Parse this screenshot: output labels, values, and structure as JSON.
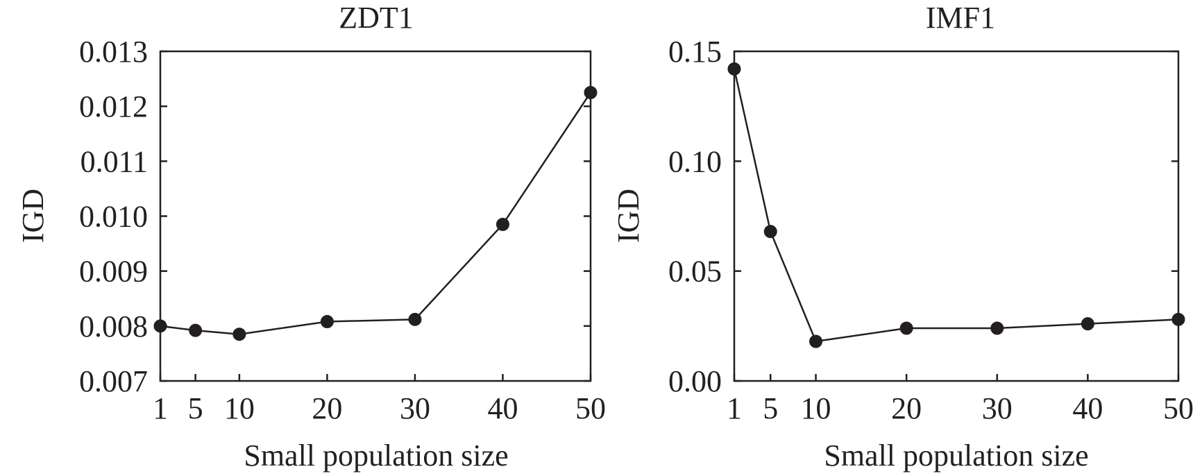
{
  "chart_data": [
    {
      "type": "line",
      "title": "ZDT1",
      "xlabel": "Small population size",
      "ylabel": "IGD",
      "x": [
        1,
        5,
        10,
        20,
        30,
        40,
        50
      ],
      "x_tick_labels": [
        "1",
        "5",
        "10",
        "20",
        "30",
        "40",
        "50"
      ],
      "y_tick_values": [
        0.007,
        0.008,
        0.009,
        0.01,
        0.011,
        0.012,
        0.013
      ],
      "y_tick_labels": [
        "0.007",
        "0.008",
        "0.009",
        "0.010",
        "0.011",
        "0.012",
        "0.013"
      ],
      "xlim": [
        1,
        50
      ],
      "ylim": [
        0.007,
        0.013
      ],
      "grid": false,
      "series": [
        {
          "name": "ZDT1",
          "values": [
            0.008,
            0.00792,
            0.00785,
            0.00808,
            0.00812,
            0.00985,
            0.01225
          ],
          "color": "#231f20",
          "marker": "circle"
        }
      ]
    },
    {
      "type": "line",
      "title": "IMF1",
      "xlabel": "Small population size",
      "ylabel": "IGD",
      "x": [
        1,
        5,
        10,
        20,
        30,
        40,
        50
      ],
      "x_tick_labels": [
        "1",
        "5",
        "10",
        "20",
        "30",
        "40",
        "50"
      ],
      "y_tick_values": [
        0.0,
        0.05,
        0.1,
        0.15
      ],
      "y_tick_labels": [
        "0.00",
        "0.05",
        "0.10",
        "0.15"
      ],
      "xlim": [
        1,
        50
      ],
      "ylim": [
        0.0,
        0.15
      ],
      "grid": false,
      "series": [
        {
          "name": "IMF1",
          "values": [
            0.142,
            0.068,
            0.018,
            0.024,
            0.024,
            0.026,
            0.028
          ],
          "color": "#231f20",
          "marker": "circle"
        }
      ]
    }
  ]
}
